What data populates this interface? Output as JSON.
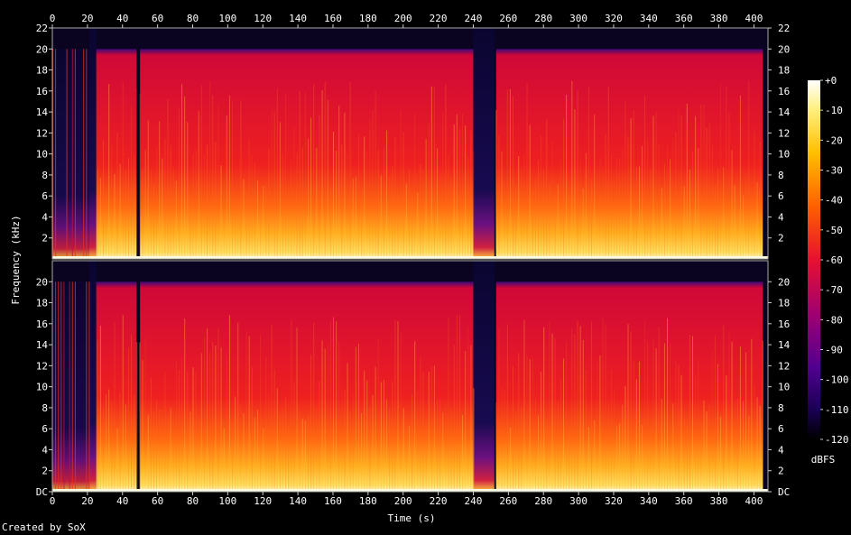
{
  "chart_data": {
    "type": "heatmap",
    "title": "",
    "xlabel": "Time (s)",
    "ylabel": "Frequency (kHz)",
    "xlim": [
      0,
      408
    ],
    "ylim": [
      0,
      22
    ],
    "x_ticks": [
      0,
      20,
      40,
      60,
      80,
      100,
      120,
      140,
      160,
      180,
      200,
      220,
      240,
      260,
      280,
      300,
      320,
      340,
      360,
      380,
      400
    ],
    "y_ticks_top": [
      "2",
      "4",
      "6",
      "8",
      "10",
      "12",
      "14",
      "16",
      "18",
      "20",
      "22"
    ],
    "y_ticks_bottom": [
      "DC",
      "2",
      "4",
      "6",
      "8",
      "10",
      "12",
      "14",
      "16",
      "18",
      "20"
    ],
    "channels": 2,
    "colorbar": {
      "label": "dBFS",
      "range": [
        -120,
        0
      ],
      "ticks": [
        "+0",
        "-10",
        "-20",
        "-30",
        "-40",
        "-50",
        "-60",
        "-70",
        "-80",
        "-90",
        "-100",
        "-110",
        "-120"
      ]
    },
    "spectral_profile": {
      "lowpass_cutoff_khz": 20,
      "quiet_segments_s": [
        [
          21,
          25
        ],
        [
          240,
          252
        ]
      ],
      "loud_segments_s": [
        [
          25,
          48
        ],
        [
          50,
          240
        ],
        [
          253,
          405
        ]
      ]
    }
  },
  "footer": "Created by SoX"
}
